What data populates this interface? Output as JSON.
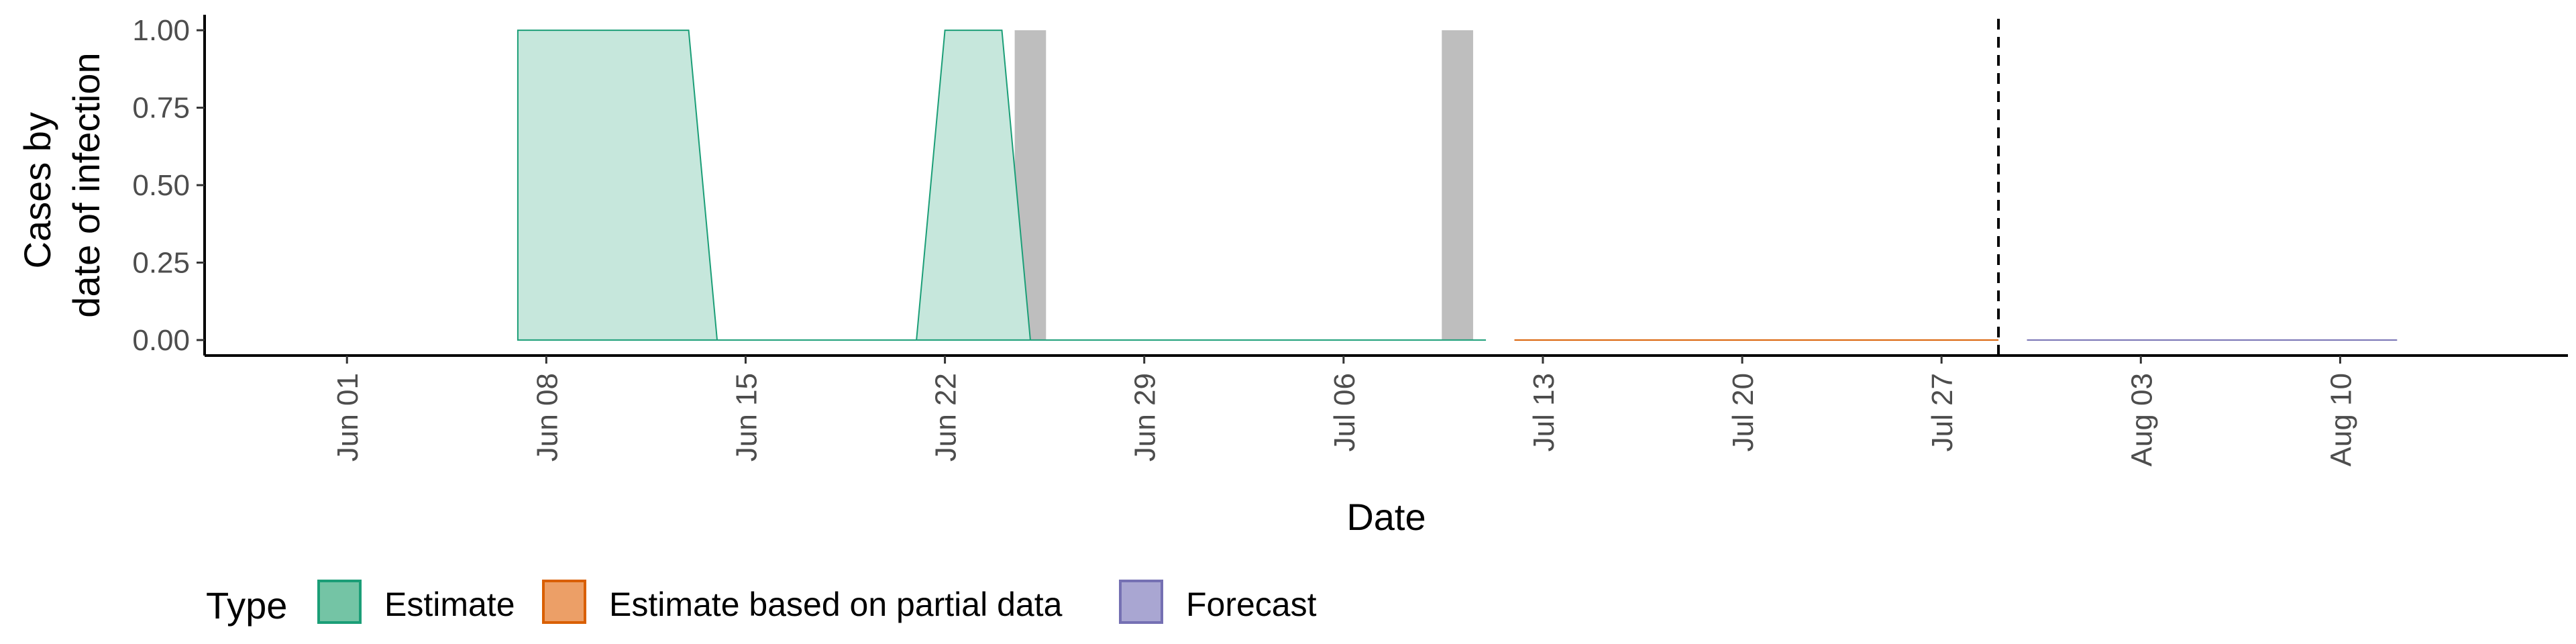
{
  "chart_data": {
    "type": "area",
    "title": "",
    "xlabel": "Date",
    "ylabel_lines": [
      "Cases by",
      "date of infection"
    ],
    "x_type": "date",
    "xlim": [
      "2021-05-27",
      "2021-08-18"
    ],
    "ylim": [
      -0.05,
      1.05
    ],
    "x_ticks": [
      {
        "date": "2021-06-01",
        "label": "Jun 01"
      },
      {
        "date": "2021-06-08",
        "label": "Jun 08"
      },
      {
        "date": "2021-06-15",
        "label": "Jun 15"
      },
      {
        "date": "2021-06-22",
        "label": "Jun 22"
      },
      {
        "date": "2021-06-29",
        "label": "Jun 29"
      },
      {
        "date": "2021-07-06",
        "label": "Jul 06"
      },
      {
        "date": "2021-07-13",
        "label": "Jul 13"
      },
      {
        "date": "2021-07-20",
        "label": "Jul 20"
      },
      {
        "date": "2021-07-27",
        "label": "Jul 27"
      },
      {
        "date": "2021-08-03",
        "label": "Aug 03"
      },
      {
        "date": "2021-08-10",
        "label": "Aug 10"
      }
    ],
    "y_ticks": [
      {
        "value": 0,
        "label": "0.00"
      },
      {
        "value": 0.25,
        "label": "0.25"
      },
      {
        "value": 0.5,
        "label": "0.50"
      },
      {
        "value": 0.75,
        "label": "0.75"
      },
      {
        "value": 1,
        "label": "1.00"
      }
    ],
    "grid": false,
    "series": [
      {
        "name": "Estimate",
        "color": "#1b9e77",
        "fill": "#c6e7dc",
        "x": [
          "2021-06-07",
          "2021-06-13",
          "2021-06-14",
          "2021-06-21",
          "2021-06-22",
          "2021-06-24",
          "2021-06-25",
          "2021-07-11"
        ],
        "lower": [
          0,
          0,
          0,
          0,
          0,
          0,
          0,
          0
        ],
        "upper": [
          1,
          1,
          0,
          0,
          1,
          1,
          0,
          0
        ]
      },
      {
        "name": "Estimate based on partial data",
        "color": "#d95f02",
        "fill": "#e99b5f",
        "x": [
          "2021-07-12",
          "2021-07-29"
        ],
        "lower": [
          0,
          0
        ],
        "upper": [
          0,
          0
        ]
      },
      {
        "name": "Forecast",
        "color": "#7570b3",
        "fill": "#a9a6d2",
        "x": [
          "2021-07-30",
          "2021-08-12"
        ],
        "lower": [
          0,
          0
        ],
        "upper": [
          0,
          0
        ]
      }
    ],
    "reported_cases": {
      "color": "#bebebe",
      "bars": [
        {
          "date": "2021-06-25",
          "value": 1
        },
        {
          "date": "2021-07-10",
          "value": 1
        }
      ]
    },
    "vline": {
      "date": "2021-07-29",
      "style": "dashed"
    },
    "legend": {
      "position": "bottom",
      "title": "Type",
      "items": [
        {
          "label": "Estimate",
          "fill": "#74c4a5",
          "border": "#1b9e77"
        },
        {
          "label": "Estimate based on partial data",
          "fill": "#ec9f67",
          "border": "#d95f02"
        },
        {
          "label": "Forecast",
          "fill": "#a9a6d2",
          "border": "#7570b3"
        }
      ]
    }
  }
}
